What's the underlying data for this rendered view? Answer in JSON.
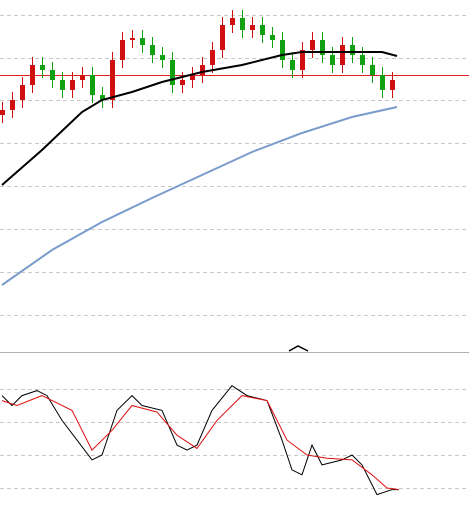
{
  "chart_data": [
    {
      "type": "candlestick",
      "open": [
        235,
        240,
        250,
        265,
        285,
        280,
        270,
        260,
        270,
        275,
        255,
        250,
        290,
        310,
        312,
        305,
        295,
        290,
        265,
        270,
        275,
        285,
        300,
        325,
        332,
        320,
        325,
        315,
        310,
        290,
        280,
        300,
        310,
        295,
        285,
        305,
        295,
        285,
        275,
        260
      ],
      "high": [
        248,
        258,
        273,
        293,
        293,
        288,
        278,
        278,
        283,
        283,
        263,
        298,
        318,
        320,
        320,
        313,
        303,
        298,
        278,
        283,
        293,
        308,
        333,
        340,
        340,
        333,
        333,
        323,
        318,
        298,
        308,
        318,
        318,
        303,
        313,
        313,
        303,
        293,
        283,
        278
      ],
      "low": [
        227,
        232,
        242,
        257,
        272,
        262,
        252,
        252,
        262,
        247,
        242,
        242,
        282,
        302,
        297,
        287,
        282,
        257,
        257,
        262,
        267,
        277,
        292,
        317,
        312,
        312,
        307,
        302,
        282,
        272,
        272,
        292,
        287,
        277,
        277,
        287,
        277,
        267,
        252,
        252
      ],
      "close": [
        240,
        250,
        265,
        285,
        280,
        270,
        260,
        270,
        275,
        255,
        250,
        290,
        310,
        312,
        305,
        295,
        290,
        265,
        270,
        275,
        285,
        300,
        325,
        332,
        320,
        325,
        315,
        310,
        290,
        280,
        300,
        310,
        295,
        285,
        305,
        295,
        285,
        275,
        260,
        270
      ],
      "up_color": "#d01010",
      "down_color": "#10a010",
      "xlim": [
        -0.2,
        46.7
      ],
      "ylim": [
        0,
        350
      ],
      "yticks": [
        335,
        292,
        250,
        207,
        164,
        121,
        78,
        35
      ],
      "grid": true,
      "hline": {
        "value": 275,
        "color": "#e02020"
      },
      "series": [
        {
          "color": "#000000",
          "x": [
            0,
            4,
            8,
            10,
            13,
            16,
            20,
            24,
            28,
            30,
            34,
            38,
            39.5
          ],
          "values": [
            165,
            200,
            238,
            250,
            258,
            268,
            278,
            285,
            295,
            298,
            298,
            298,
            294
          ]
        },
        {
          "color": "#7a9ccc",
          "x": [
            0,
            5,
            10,
            15,
            20,
            25,
            30,
            35,
            39.5
          ],
          "values": [
            65,
            100,
            128,
            152,
            175,
            198,
            217,
            233,
            243
          ]
        }
      ]
    },
    {
      "type": "line",
      "xlim": [
        -0.2,
        46.7
      ],
      "ylim": [
        0,
        100
      ],
      "yticks": [
        80,
        60,
        40,
        20
      ],
      "grid": true,
      "series": [
        {
          "color": "#000000",
          "x": [
            0,
            1,
            2,
            3.5,
            4.5,
            6,
            7.5,
            9,
            10,
            11.5,
            13,
            14,
            16,
            17.5,
            18.5,
            19.5,
            21,
            23,
            24.5,
            26.5,
            28,
            29,
            30,
            31,
            32,
            34,
            35,
            36,
            37.5,
            39,
            39.7
          ],
          "values": [
            76,
            70,
            76,
            79,
            76,
            61,
            49,
            37,
            40,
            67,
            76,
            70,
            67,
            46,
            43,
            46,
            67,
            82,
            76,
            73,
            49,
            31,
            28,
            46,
            34,
            37,
            40,
            34,
            16,
            19,
            19
          ]
        },
        {
          "color": "#e01010",
          "x": [
            0,
            1.5,
            4,
            7,
            9,
            11,
            13,
            15.5,
            17.5,
            19.5,
            21.5,
            24,
            26.5,
            28.5,
            30.5,
            32.5,
            35,
            37,
            38.5,
            39.7
          ],
          "values": [
            73,
            70,
            76,
            67,
            43,
            55,
            70,
            66,
            52,
            44,
            61,
            76,
            73,
            49,
            40,
            38,
            37,
            28,
            20,
            19
          ]
        }
      ]
    }
  ]
}
